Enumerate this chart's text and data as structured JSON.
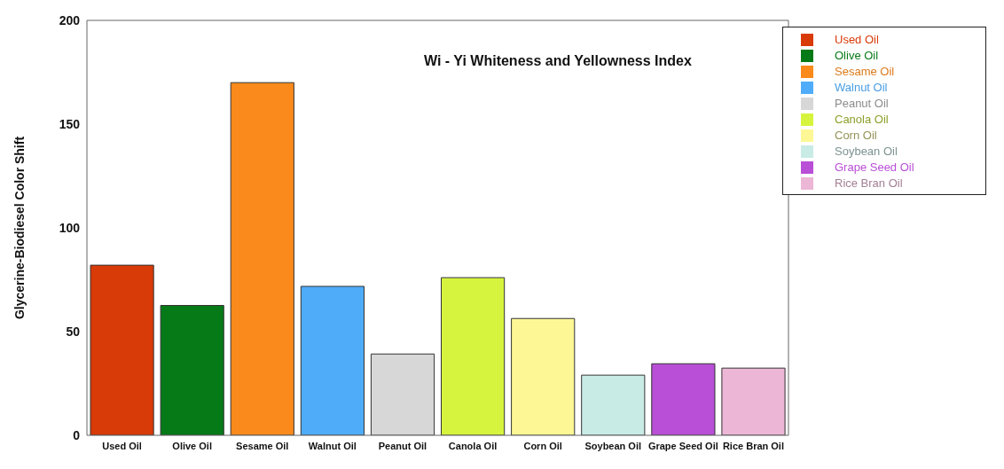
{
  "chart_data": {
    "type": "bar",
    "title": "Wi - Yi Whiteness and Yellowness Index",
    "ylabel": "Glycerine-Biodiesel Color Shift",
    "categories": [
      "Used Oil",
      "Olive Oil",
      "Sesame Oil",
      "Walnut Oil",
      "Peanut Oil",
      "Canola Oil",
      "Corn Oil",
      "Soybean Oil",
      "Grape Seed Oil",
      "Rice Bran Oil"
    ],
    "stacked": true,
    "series": [
      {
        "name": "Used Oil",
        "color": "#d83a08",
        "values": [
          82,
          null,
          null,
          null,
          null,
          null,
          null,
          null,
          null,
          null
        ]
      },
      {
        "name": "Olive Oil",
        "color": "#077a18",
        "values": [
          null,
          62.6,
          null,
          null,
          null,
          null,
          null,
          null,
          null,
          null
        ]
      },
      {
        "name": "Sesame Oil",
        "color": "#fb8a1c",
        "values": [
          null,
          null,
          170,
          null,
          null,
          null,
          null,
          null,
          null,
          null
        ]
      },
      {
        "name": "Walnut Oil",
        "color": "#4facf9",
        "values": [
          null,
          null,
          null,
          71.8,
          null,
          null,
          null,
          null,
          null,
          null
        ]
      },
      {
        "name": "Peanut Oil",
        "color": "#d7d7d7",
        "values": [
          null,
          null,
          null,
          null,
          39.2,
          null,
          null,
          null,
          null,
          null
        ]
      },
      {
        "name": "Canola Oil",
        "color": "#d6f43e",
        "values": [
          null,
          null,
          null,
          null,
          null,
          76,
          null,
          null,
          null,
          null
        ]
      },
      {
        "name": "Corn Oil",
        "color": "#fdf895",
        "values": [
          null,
          null,
          null,
          null,
          null,
          null,
          56.3,
          null,
          null,
          null
        ]
      },
      {
        "name": "Soybean Oil",
        "color": "#c9ebe6",
        "values": [
          null,
          null,
          null,
          null,
          null,
          null,
          null,
          29,
          null,
          null
        ]
      },
      {
        "name": "Grape Seed Oil",
        "color": "#b94ed7",
        "values": [
          null,
          null,
          null,
          null,
          null,
          null,
          null,
          null,
          34.5,
          null
        ]
      },
      {
        "name": "Rice Bran Oil",
        "color": "#ecb6d6",
        "values": [
          null,
          null,
          null,
          null,
          null,
          null,
          null,
          null,
          null,
          32.4
        ]
      }
    ],
    "ylim": [
      0,
      200
    ],
    "yticks": [
      0,
      50,
      100,
      150,
      200
    ],
    "grid": false,
    "legend": "top right"
  }
}
